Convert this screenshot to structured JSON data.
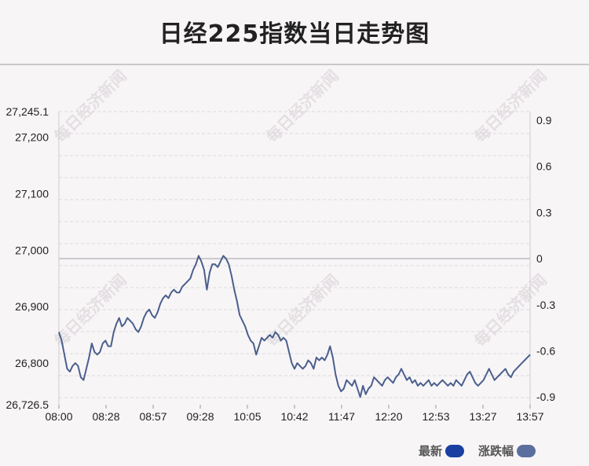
{
  "title": "日经225指数当日走势图",
  "watermark": "每日经济新闻",
  "legend": {
    "latest_label": "最新",
    "latest_color": "#1a3fa3",
    "change_label": "涨跌幅",
    "change_color": "#5b6f9e"
  },
  "chart_data": {
    "type": "line",
    "line_color": "#4a5f8c",
    "zero_line_color": "#bdbbc2",
    "y_left": {
      "ylim": [
        26726.5,
        27245.1
      ],
      "ticks": [
        "26,726.5",
        "26,800",
        "26,900",
        "27,000",
        "27,100",
        "27,200",
        "27,245.1"
      ],
      "tick_values": [
        26726.5,
        26800,
        26900,
        27000,
        27100,
        27200,
        27245.1
      ]
    },
    "y_right": {
      "ticks": [
        "-0.9",
        "-0.6",
        "-0.3",
        "0",
        "0.3",
        "0.6",
        "0.9"
      ],
      "tick_values": [
        -0.9,
        -0.6,
        -0.3,
        0,
        0.3,
        0.6,
        0.9
      ]
    },
    "reference_value": 26985,
    "x_ticks": [
      "08:00",
      "08:28",
      "08:57",
      "09:28",
      "10:05",
      "10:42",
      "11:47",
      "12:20",
      "12:53",
      "13:27",
      "13:57"
    ],
    "series": [
      {
        "points": [
          [
            0,
            26855
          ],
          [
            1,
            26840
          ],
          [
            2,
            26815
          ],
          [
            3,
            26790
          ],
          [
            4,
            26785
          ],
          [
            5,
            26795
          ],
          [
            6,
            26800
          ],
          [
            7,
            26795
          ],
          [
            8,
            26775
          ],
          [
            9,
            26770
          ],
          [
            10,
            26790
          ],
          [
            11,
            26810
          ],
          [
            12,
            26835
          ],
          [
            13,
            26820
          ],
          [
            14,
            26815
          ],
          [
            15,
            26820
          ],
          [
            16,
            26835
          ],
          [
            17,
            26840
          ],
          [
            18,
            26830
          ],
          [
            19,
            26830
          ],
          [
            20,
            26855
          ],
          [
            21,
            26870
          ],
          [
            22,
            26880
          ],
          [
            23,
            26865
          ],
          [
            24,
            26870
          ],
          [
            25,
            26880
          ],
          [
            26,
            26875
          ],
          [
            27,
            26870
          ],
          [
            28,
            26860
          ],
          [
            29,
            26855
          ],
          [
            30,
            26865
          ],
          [
            31,
            26880
          ],
          [
            32,
            26890
          ],
          [
            33,
            26895
          ],
          [
            34,
            26885
          ],
          [
            35,
            26880
          ],
          [
            36,
            26890
          ],
          [
            37,
            26905
          ],
          [
            38,
            26915
          ],
          [
            39,
            26920
          ],
          [
            40,
            26915
          ],
          [
            41,
            26925
          ],
          [
            42,
            26930
          ],
          [
            43,
            26925
          ],
          [
            44,
            26925
          ],
          [
            45,
            26935
          ],
          [
            46,
            26940
          ],
          [
            47,
            26945
          ],
          [
            48,
            26950
          ],
          [
            49,
            26965
          ],
          [
            50,
            26975
          ],
          [
            51,
            26990
          ],
          [
            52,
            26980
          ],
          [
            53,
            26965
          ],
          [
            54,
            26930
          ],
          [
            55,
            26960
          ],
          [
            56,
            26975
          ],
          [
            57,
            26975
          ],
          [
            58,
            26970
          ],
          [
            59,
            26980
          ],
          [
            60,
            26990
          ],
          [
            61,
            26985
          ],
          [
            62,
            26975
          ],
          [
            63,
            26955
          ],
          [
            64,
            26930
          ],
          [
            65,
            26910
          ],
          [
            66,
            26885
          ],
          [
            67,
            26875
          ],
          [
            68,
            26865
          ],
          [
            69,
            26850
          ],
          [
            70,
            26840
          ],
          [
            71,
            26835
          ],
          [
            72,
            26815
          ],
          [
            73,
            26830
          ],
          [
            74,
            26845
          ],
          [
            75,
            26840
          ],
          [
            76,
            26845
          ],
          [
            77,
            26850
          ],
          [
            78,
            26845
          ],
          [
            79,
            26855
          ],
          [
            80,
            26850
          ],
          [
            81,
            26840
          ],
          [
            82,
            26845
          ],
          [
            83,
            26840
          ],
          [
            84,
            26820
          ],
          [
            85,
            26800
          ],
          [
            86,
            26790
          ],
          [
            87,
            26800
          ],
          [
            88,
            26795
          ],
          [
            89,
            26790
          ],
          [
            90,
            26795
          ],
          [
            91,
            26805
          ],
          [
            92,
            26800
          ],
          [
            93,
            26790
          ],
          [
            94,
            26810
          ],
          [
            95,
            26805
          ],
          [
            96,
            26810
          ],
          [
            97,
            26805
          ],
          [
            98,
            26815
          ],
          [
            99,
            26830
          ],
          [
            100,
            26810
          ],
          [
            101,
            26780
          ],
          [
            102,
            26760
          ],
          [
            103,
            26750
          ],
          [
            104,
            26755
          ],
          [
            105,
            26770
          ],
          [
            106,
            26765
          ],
          [
            107,
            26760
          ],
          [
            108,
            26770
          ],
          [
            109,
            26755
          ],
          [
            110,
            26740
          ],
          [
            111,
            26760
          ],
          [
            112,
            26745
          ],
          [
            113,
            26755
          ],
          [
            114,
            26760
          ],
          [
            115,
            26775
          ],
          [
            116,
            26770
          ],
          [
            117,
            26765
          ],
          [
            118,
            26760
          ],
          [
            119,
            26770
          ],
          [
            120,
            26775
          ],
          [
            121,
            26770
          ],
          [
            122,
            26765
          ],
          [
            123,
            26775
          ],
          [
            124,
            26780
          ],
          [
            125,
            26790
          ],
          [
            126,
            26780
          ],
          [
            127,
            26770
          ],
          [
            128,
            26775
          ],
          [
            129,
            26765
          ],
          [
            130,
            26770
          ],
          [
            131,
            26760
          ],
          [
            132,
            26765
          ],
          [
            133,
            26760
          ],
          [
            134,
            26765
          ],
          [
            135,
            26770
          ],
          [
            136,
            26760
          ],
          [
            137,
            26765
          ],
          [
            138,
            26760
          ],
          [
            139,
            26765
          ],
          [
            140,
            26770
          ],
          [
            141,
            26765
          ],
          [
            142,
            26760
          ],
          [
            143,
            26765
          ],
          [
            144,
            26760
          ],
          [
            145,
            26770
          ],
          [
            146,
            26765
          ],
          [
            147,
            26760
          ],
          [
            148,
            26770
          ],
          [
            149,
            26780
          ],
          [
            150,
            26785
          ],
          [
            151,
            26775
          ],
          [
            152,
            26765
          ],
          [
            153,
            26760
          ],
          [
            154,
            26765
          ],
          [
            155,
            26770
          ],
          [
            156,
            26780
          ],
          [
            157,
            26790
          ],
          [
            158,
            26780
          ],
          [
            159,
            26770
          ],
          [
            160,
            26775
          ],
          [
            161,
            26780
          ],
          [
            162,
            26785
          ],
          [
            163,
            26790
          ],
          [
            164,
            26780
          ],
          [
            165,
            26775
          ],
          [
            166,
            26785
          ],
          [
            167,
            26790
          ],
          [
            168,
            26795
          ],
          [
            169,
            26800
          ],
          [
            170,
            26805
          ],
          [
            171,
            26810
          ],
          [
            172,
            26815
          ]
        ]
      }
    ],
    "x_max": 172
  }
}
